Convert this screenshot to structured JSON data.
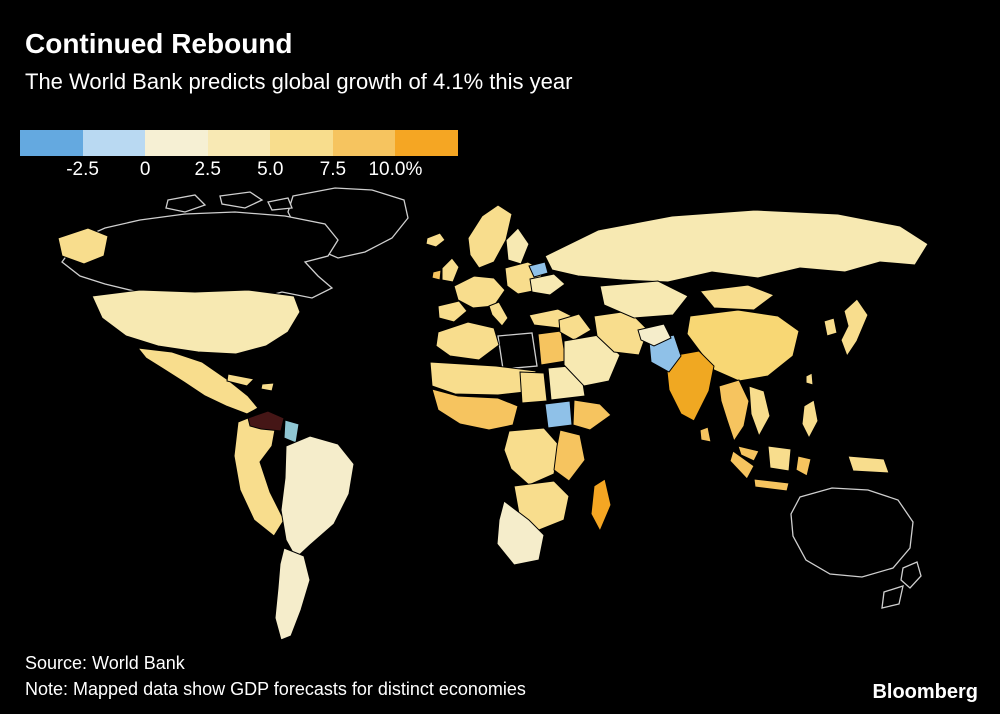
{
  "header": {
    "title": "Continued Rebound",
    "subtitle": "The World Bank predicts global growth of 4.1% this year"
  },
  "footer": {
    "source": "Source: World Bank",
    "note": "Note: Mapped data show GDP forecasts for distinct economies",
    "brand": "Bloomberg"
  },
  "chart_data": {
    "type": "choropleth_map",
    "scope": "world",
    "title": "Continued Rebound",
    "subtitle": "The World Bank predicts global growth of 4.1% this year",
    "metric": "GDP growth forecast",
    "unit": "%",
    "global_growth_pct": 4.1,
    "source": "World Bank",
    "note": "Mapped data show GDP forecasts for distinct economies",
    "legend": {
      "ticks": [
        "-2.5",
        "0",
        "2.5",
        "5.0",
        "7.5",
        "10.0%"
      ],
      "colors": [
        "#64a9e0",
        "#b9d9f2",
        "#f6f0d4",
        "#f8e9b4",
        "#f8dd8d",
        "#f6c45f",
        "#f5a623"
      ],
      "range_low": -5.0,
      "range_high": 12.5,
      "position": "top-left"
    },
    "highlights": [
      {
        "name": "India",
        "band": "7.5–10%",
        "color": "#f0a822"
      },
      {
        "name": "Pakistan",
        "band": "below 0%",
        "color": "#8fc1e8"
      },
      {
        "name": "South Sudan",
        "band": "below 0%",
        "color": "#8fc1e8"
      },
      {
        "name": "Belarus",
        "band": "below 0%",
        "color": "#8fc1e8"
      },
      {
        "name": "Guyana",
        "band": "below 0%",
        "color": "#8fc6d3"
      },
      {
        "name": "Venezuela",
        "band": "dark shaded",
        "color": "#451616"
      },
      {
        "name": "China",
        "band": "5.0–7.5%",
        "color": "#f8d774"
      },
      {
        "name": "United States",
        "band": "2.5–5.0%",
        "color": "#f7e9b2"
      },
      {
        "name": "Russia",
        "band": "0–2.5%",
        "color": "#f7e9b2"
      },
      {
        "name": "Madagascar",
        "band": "7.5–10%",
        "color": "#f5a623"
      },
      {
        "name": "Canada",
        "band": "unshaded (outline only)",
        "color": "#000000"
      },
      {
        "name": "Greenland",
        "band": "unshaded (outline only)",
        "color": "#000000"
      },
      {
        "name": "Australia",
        "band": "unshaded (outline only)",
        "color": "#000000"
      },
      {
        "name": "New Zealand",
        "band": "unshaded (outline only)",
        "color": "#000000"
      },
      {
        "name": "Libya",
        "band": "unshaded (outline only)",
        "color": "#000000"
      }
    ],
    "region_colors": {
      "alaska": "#f8dd8d",
      "usa": "#f7e9b2",
      "mexico": "#f8dd8d",
      "cuba": "#f8dd8d",
      "hispaniola": "#f8dd8d",
      "colombia-peru": "#f8dd8d",
      "venezuela": "#451616",
      "guyana": "#8fc6d3",
      "brazil": "#f5edcb",
      "argentina": "#f5edcb",
      "iceland": "#f8dd8d",
      "uk": "#f8dd8d",
      "ireland": "#f6c45f",
      "scandinavia": "#f8dd8d",
      "finland": "#f7e9b2",
      "west-europe": "#f8dd8d",
      "iberia": "#f8dd8d",
      "italy": "#f8dd8d",
      "east-europe": "#f8dd8d",
      "belarus": "#8fc1e8",
      "ukraine": "#f7e9b2",
      "turkey": "#f8dd8d",
      "morocco-algeria": "#f8dd8d",
      "egypt": "#f6c45f",
      "sahel": "#f8dd8d",
      "west-africa": "#f6c45f",
      "chad": "#f8dd8d",
      "sudan": "#f7e9b2",
      "south-sudan": "#8fc1e8",
      "ethiopia": "#f6c45f",
      "drc": "#f8dd8d",
      "east-africa": "#f6c45f",
      "southern-africa": "#f8dd8d",
      "south-africa": "#f5edcb",
      "madagascar": "#f5a623",
      "levant": "#f8dd8d",
      "saudi": "#f7e9b2",
      "iran": "#f8dd8d",
      "russia": "#f7e9b2",
      "central-asia": "#f7e9b2",
      "mongolia": "#f8dd8d",
      "china": "#f8d774",
      "india": "#f0a822",
      "pakistan": "#8fc1e8",
      "afghanistan": "#f5edcb",
      "myanmar-thailand": "#f6c45f",
      "vietnam": "#f8dd8d",
      "malaysia": "#f6c45f",
      "sumatra": "#f6c45f",
      "java": "#f6c45f",
      "borneo": "#f8dd8d",
      "sulawesi": "#f6c45f",
      "new-guinea": "#f8dd8d",
      "philippines": "#f8dd8d",
      "japan": "#f8dd8d",
      "korea": "#f8dd8d",
      "sri-lanka": "#f6c45f",
      "taiwan": "#f8dd8d"
    }
  }
}
